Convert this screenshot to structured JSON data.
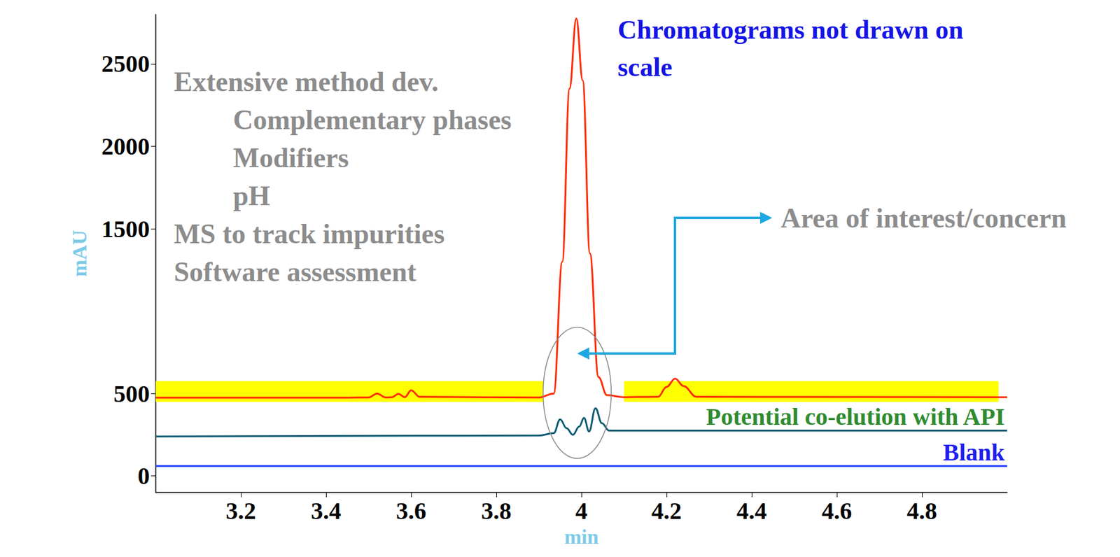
{
  "chart_data": {
    "type": "line",
    "title": "Chromatograms not drawn on scale",
    "x_label": "min",
    "y_label": "mAU",
    "xlim": [
      3.0,
      5.0
    ],
    "xticks": [
      3.2,
      3.4,
      3.6,
      3.8,
      4,
      4.2,
      4.4,
      4.6,
      4.8
    ],
    "ylim": [
      -100,
      2800
    ],
    "yticks": [
      0,
      500,
      1500,
      2000,
      2500
    ],
    "grid": false,
    "marker": "none",
    "series": [
      {
        "color": "#ff2a00",
        "x": [
          3.0,
          3.45,
          3.5,
          3.52,
          3.54,
          3.555,
          3.57,
          3.585,
          3.6,
          3.62,
          3.9,
          3.935,
          3.955,
          3.972,
          3.988,
          4.003,
          4.02,
          4.04,
          4.06,
          4.1,
          4.18,
          4.2,
          4.22,
          4.24,
          4.27,
          5.0
        ],
        "values": [
          475,
          475,
          476,
          500,
          476,
          478,
          498,
          478,
          520,
          480,
          476,
          500,
          1300,
          2350,
          2775,
          2400,
          1350,
          600,
          490,
          478,
          480,
          540,
          590,
          545,
          480,
          478
        ]
      },
      {
        "name": "Potential co-elution with API",
        "color": "#0b5a72",
        "x": [
          3.0,
          3.9,
          3.935,
          3.95,
          3.965,
          3.98,
          3.995,
          4.006,
          4.018,
          4.033,
          4.048,
          4.065,
          4.2,
          5.0
        ],
        "values": [
          240,
          245,
          260,
          343,
          290,
          250,
          300,
          352,
          270,
          411,
          320,
          275,
          275,
          275
        ]
      },
      {
        "name": "Blank",
        "color": "#1f3fff",
        "x": [
          3.0,
          5.0
        ],
        "values": [
          60,
          60
        ]
      }
    ],
    "highlights": [
      {
        "x": [
          3.0,
          3.91
        ],
        "y": [
          449,
          576
        ]
      },
      {
        "x": [
          4.1,
          4.98
        ],
        "y": [
          449,
          576
        ]
      }
    ],
    "callout": {
      "text": "Area of interest/concern",
      "x": [
        3.91,
        4.07
      ],
      "y": [
        106,
        902
      ]
    },
    "notes": [
      {
        "text": "Extensive method dev.",
        "items": [
          "Complementary phases",
          "Modifiers",
          "pH"
        ]
      },
      {
        "text": "MS to track impurities"
      },
      {
        "text": "Software assessment"
      }
    ]
  }
}
